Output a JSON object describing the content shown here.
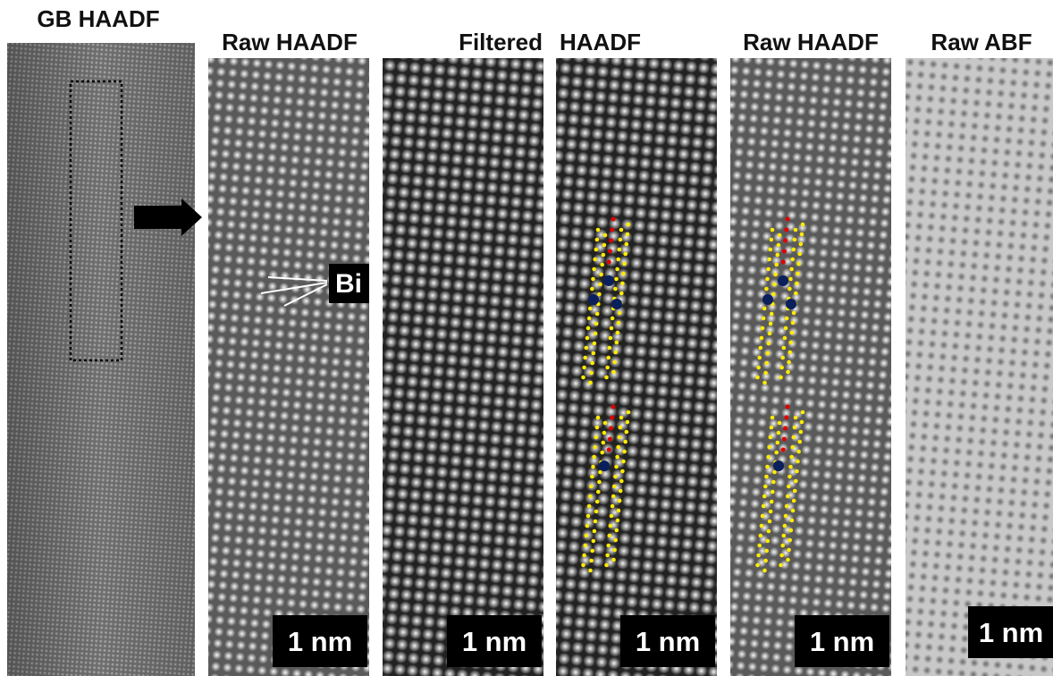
{
  "panels": [
    {
      "title": "GB HAADF"
    },
    {
      "title": "Raw HAADF",
      "annotation": "Bi",
      "scale_bar": "1 nm"
    },
    {
      "title": "Filtered",
      "scale_bar": "1 nm"
    },
    {
      "title": "HAADF",
      "scale_bar": "1 nm"
    },
    {
      "title": "Raw HAADF",
      "scale_bar": "1 nm"
    },
    {
      "title": "Raw ABF",
      "scale_bar": "1 nm"
    }
  ]
}
